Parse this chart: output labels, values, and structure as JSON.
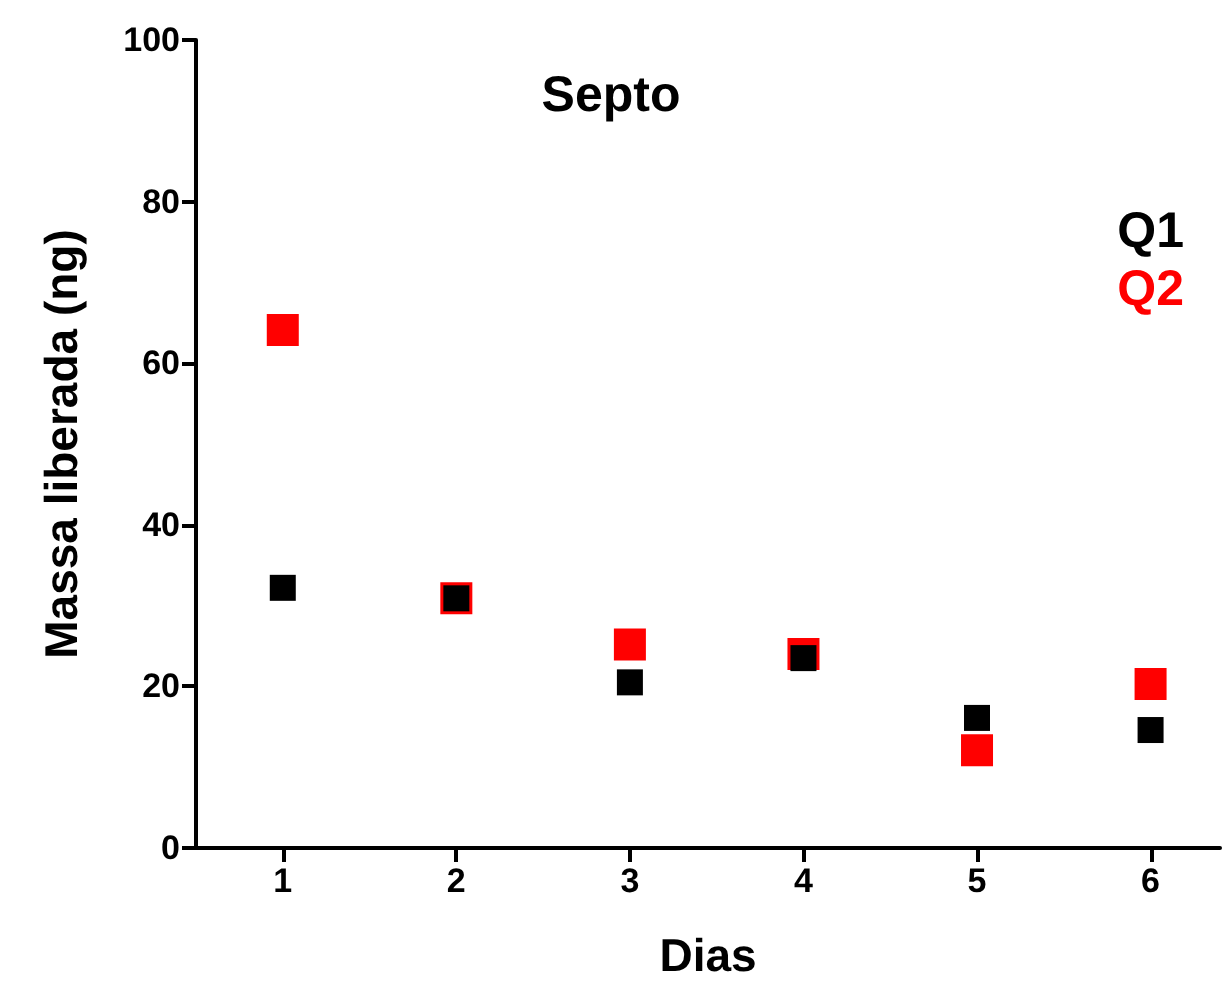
{
  "chart_data": {
    "type": "scatter",
    "title": "Septo",
    "xlabel": "Dias",
    "ylabel": "Massa liberada (ng)",
    "x": [
      1,
      2,
      3,
      4,
      5,
      6
    ],
    "series": [
      {
        "name": "Q1",
        "color": "#000000",
        "values": [
          32.2,
          30.9,
          20.5,
          23.5,
          16.1,
          14.6
        ]
      },
      {
        "name": "Q2",
        "color": "#ff0000",
        "values": [
          64.1,
          30.9,
          25.2,
          24.0,
          12.1,
          20.3
        ]
      }
    ],
    "xlim": [
      0.5,
      6.4
    ],
    "xticks": [
      1,
      2,
      3,
      4,
      5,
      6
    ],
    "ylim": [
      0,
      100
    ],
    "yticks": [
      0,
      20,
      40,
      60,
      80,
      100
    ],
    "marker": "square",
    "legend": "top right",
    "grid": false
  }
}
